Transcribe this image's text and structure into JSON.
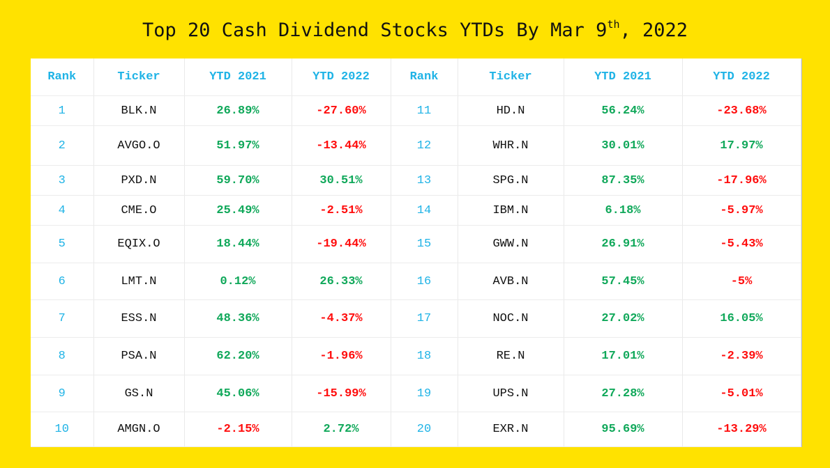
{
  "title": {
    "prefix": "Top 20 Cash Dividend Stocks YTDs By Mar 9",
    "sup": "th",
    "suffix": ", 2022"
  },
  "headers": [
    "Rank",
    "Ticker",
    "YTD 2021",
    "YTD 2022",
    "Rank",
    "Ticker",
    "YTD 2021",
    "YTD 2022"
  ],
  "colors": {
    "background": "#ffe200",
    "header": "#1fb3e6",
    "positive": "#10a85a",
    "negative": "#ff0d0d"
  },
  "rows": [
    {
      "left": {
        "rank": "1",
        "ticker": "BLK.N",
        "ytd2021": "26.89%",
        "ytd2022": "-27.60%"
      },
      "right": {
        "rank": "11",
        "ticker": "HD.N",
        "ytd2021": "56.24%",
        "ytd2022": "-23.68%"
      }
    },
    {
      "left": {
        "rank": "2",
        "ticker": "AVGO.O",
        "ytd2021": "51.97%",
        "ytd2022": "-13.44%"
      },
      "right": {
        "rank": "12",
        "ticker": "WHR.N",
        "ytd2021": "30.01%",
        "ytd2022": "17.97%"
      }
    },
    {
      "left": {
        "rank": "3",
        "ticker": "PXD.N",
        "ytd2021": "59.70%",
        "ytd2022": "30.51%"
      },
      "right": {
        "rank": "13",
        "ticker": "SPG.N",
        "ytd2021": "87.35%",
        "ytd2022": "-17.96%"
      }
    },
    {
      "left": {
        "rank": "4",
        "ticker": "CME.O",
        "ytd2021": "25.49%",
        "ytd2022": "-2.51%"
      },
      "right": {
        "rank": "14",
        "ticker": "IBM.N",
        "ytd2021": "6.18%",
        "ytd2022": "-5.97%"
      }
    },
    {
      "left": {
        "rank": "5",
        "ticker": "EQIX.O",
        "ytd2021": "18.44%",
        "ytd2022": "-19.44%"
      },
      "right": {
        "rank": "15",
        "ticker": "GWW.N",
        "ytd2021": "26.91%",
        "ytd2022": "-5.43%"
      }
    },
    {
      "left": {
        "rank": "6",
        "ticker": "LMT.N",
        "ytd2021": "0.12%",
        "ytd2022": "26.33%"
      },
      "right": {
        "rank": "16",
        "ticker": "AVB.N",
        "ytd2021": "57.45%",
        "ytd2022": "-5%"
      }
    },
    {
      "left": {
        "rank": "7",
        "ticker": "ESS.N",
        "ytd2021": "48.36%",
        "ytd2022": "-4.37%"
      },
      "right": {
        "rank": "17",
        "ticker": "NOC.N",
        "ytd2021": "27.02%",
        "ytd2022": "16.05%"
      }
    },
    {
      "left": {
        "rank": "8",
        "ticker": "PSA.N",
        "ytd2021": "62.20%",
        "ytd2022": "-1.96%"
      },
      "right": {
        "rank": "18",
        "ticker": "RE.N",
        "ytd2021": "17.01%",
        "ytd2022": "-2.39%"
      }
    },
    {
      "left": {
        "rank": "9",
        "ticker": "GS.N",
        "ytd2021": "45.06%",
        "ytd2022": "-15.99%"
      },
      "right": {
        "rank": "19",
        "ticker": "UPS.N",
        "ytd2021": "27.28%",
        "ytd2022": "-5.01%"
      }
    },
    {
      "left": {
        "rank": "10",
        "ticker": "AMGN.O",
        "ytd2021": "-2.15%",
        "ytd2022": "2.72%"
      },
      "right": {
        "rank": "20",
        "ticker": "EXR.N",
        "ytd2021": "95.69%",
        "ytd2022": "-13.29%"
      }
    }
  ]
}
